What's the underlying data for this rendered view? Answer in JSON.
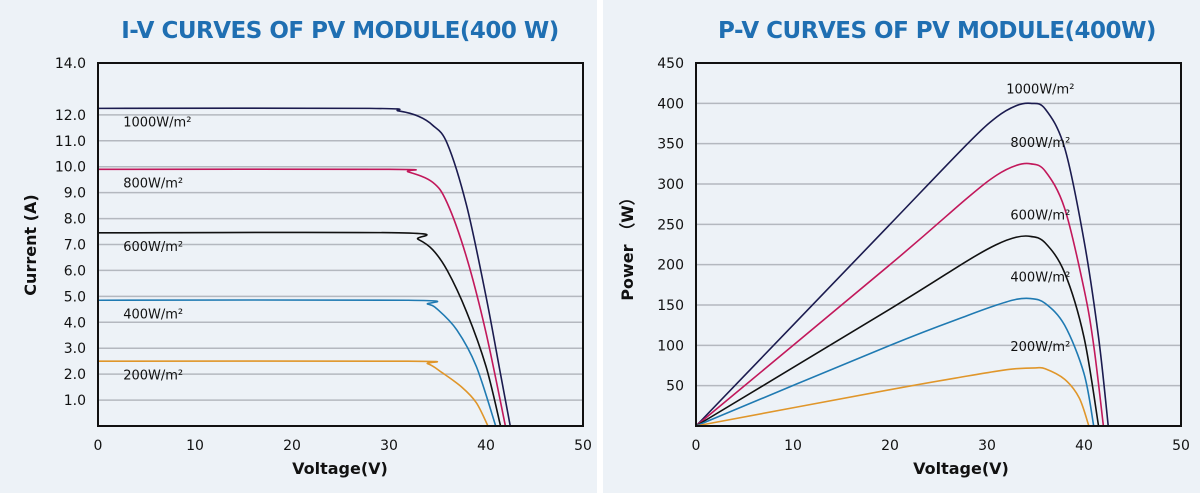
{
  "chart_data": [
    {
      "type": "line",
      "title": "I-V CURVES OF PV MODULE(400 W)",
      "xlabel": "Voltage(V)",
      "ylabel": "Current (A)",
      "xlim": [
        0,
        50
      ],
      "ylim": [
        0,
        14
      ],
      "xticks": [
        "0",
        "10",
        "20",
        "30",
        "40",
        "50"
      ],
      "yticks": [
        "1.0",
        "2.0",
        "3.0",
        "4.0",
        "5.0",
        "6.0",
        "7.0",
        "8.0",
        "9.0",
        "10.0",
        "11.0",
        "12.0",
        "14.0"
      ],
      "grid": true,
      "series": [
        {
          "name": "1000W/m²",
          "color": "#1b1b4f",
          "points": [
            [
              0,
              12.25
            ],
            [
              28,
              12.25
            ],
            [
              31,
              12.15
            ],
            [
              33,
              11.95
            ],
            [
              34.5,
              11.6
            ],
            [
              36,
              10.9
            ],
            [
              38,
              8.5
            ],
            [
              40,
              5.0
            ],
            [
              41.5,
              2.0
            ],
            [
              42.5,
              0
            ]
          ]
        },
        {
          "name": "800W/m²",
          "color": "#c2185b",
          "points": [
            [
              0,
              9.9
            ],
            [
              30,
              9.9
            ],
            [
              32,
              9.8
            ],
            [
              34.5,
              9.4
            ],
            [
              36,
              8.6
            ],
            [
              38,
              6.5
            ],
            [
              40,
              3.6
            ],
            [
              42,
              0
            ]
          ]
        },
        {
          "name": "600W/m²",
          "color": "#111111",
          "points": [
            [
              0,
              7.45
            ],
            [
              31,
              7.45
            ],
            [
              33,
              7.2
            ],
            [
              34.5,
              6.8
            ],
            [
              36,
              6.0
            ],
            [
              38,
              4.4
            ],
            [
              40,
              2.3
            ],
            [
              41.5,
              0
            ]
          ]
        },
        {
          "name": "400W/m²",
          "color": "#1f7ab2",
          "points": [
            [
              0,
              4.85
            ],
            [
              32,
              4.85
            ],
            [
              34,
              4.7
            ],
            [
              35,
              4.5
            ],
            [
              37,
              3.7
            ],
            [
              39,
              2.3
            ],
            [
              41,
              0
            ]
          ]
        },
        {
          "name": "200W/m²",
          "color": "#e0962a",
          "points": [
            [
              0,
              2.5
            ],
            [
              32,
              2.5
            ],
            [
              34,
              2.4
            ],
            [
              35.5,
              2.05
            ],
            [
              37.5,
              1.5
            ],
            [
              39,
              0.9
            ],
            [
              40.2,
              0
            ]
          ]
        }
      ]
    },
    {
      "type": "line",
      "title": "P-V CURVES OF PV MODULE(400W)",
      "xlabel": "Voltage(V)",
      "ylabel": "Power （W）",
      "xlim": [
        0,
        50
      ],
      "ylim": [
        0,
        450
      ],
      "xticks": [
        "0",
        "10",
        "20",
        "30",
        "40",
        "50"
      ],
      "yticks": [
        "50",
        "100",
        "150",
        "200",
        "250",
        "300",
        "350",
        "400",
        "450"
      ],
      "grid": true,
      "series": [
        {
          "name": "1000W/m²",
          "color": "#1b1b4f",
          "points": [
            [
              0,
              0
            ],
            [
              10,
              125
            ],
            [
              20,
              250
            ],
            [
              28,
              350
            ],
            [
              31,
              383
            ],
            [
              33,
              397
            ],
            [
              34.5,
              400
            ],
            [
              36,
              393
            ],
            [
              38,
              345
            ],
            [
              40,
              230
            ],
            [
              41.5,
              110
            ],
            [
              42.5,
              0
            ]
          ]
        },
        {
          "name": "800W/m²",
          "color": "#c2185b",
          "points": [
            [
              0,
              0
            ],
            [
              20,
              200
            ],
            [
              28,
              283
            ],
            [
              31,
              311
            ],
            [
              33,
              323
            ],
            [
              34.5,
              325
            ],
            [
              36,
              316
            ],
            [
              38,
              270
            ],
            [
              40,
              170
            ],
            [
              41,
              100
            ],
            [
              42,
              0
            ]
          ]
        },
        {
          "name": "600W/m²",
          "color": "#111111",
          "points": [
            [
              0,
              0
            ],
            [
              20,
              145
            ],
            [
              28,
              205
            ],
            [
              31,
              225
            ],
            [
              33,
              234
            ],
            [
              34.5,
              235
            ],
            [
              36,
              227
            ],
            [
              38,
              190
            ],
            [
              40,
              110
            ],
            [
              41.5,
              0
            ]
          ]
        },
        {
          "name": "400W/m²",
          "color": "#1f7ab2",
          "points": [
            [
              0,
              0
            ],
            [
              20,
              100
            ],
            [
              28,
              137
            ],
            [
              31,
              150
            ],
            [
              33,
              157
            ],
            [
              34.5,
              158
            ],
            [
              36,
              152
            ],
            [
              38,
              125
            ],
            [
              40,
              65
            ],
            [
              41,
              0
            ]
          ]
        },
        {
          "name": "200W/m²",
          "color": "#e0962a",
          "points": [
            [
              0,
              0
            ],
            [
              20,
              45
            ],
            [
              28,
              62
            ],
            [
              31,
              68
            ],
            [
              33,
              71
            ],
            [
              35,
              72
            ],
            [
              36,
              71
            ],
            [
              38,
              58
            ],
            [
              39.5,
              35
            ],
            [
              40.5,
              0
            ]
          ]
        }
      ]
    }
  ]
}
